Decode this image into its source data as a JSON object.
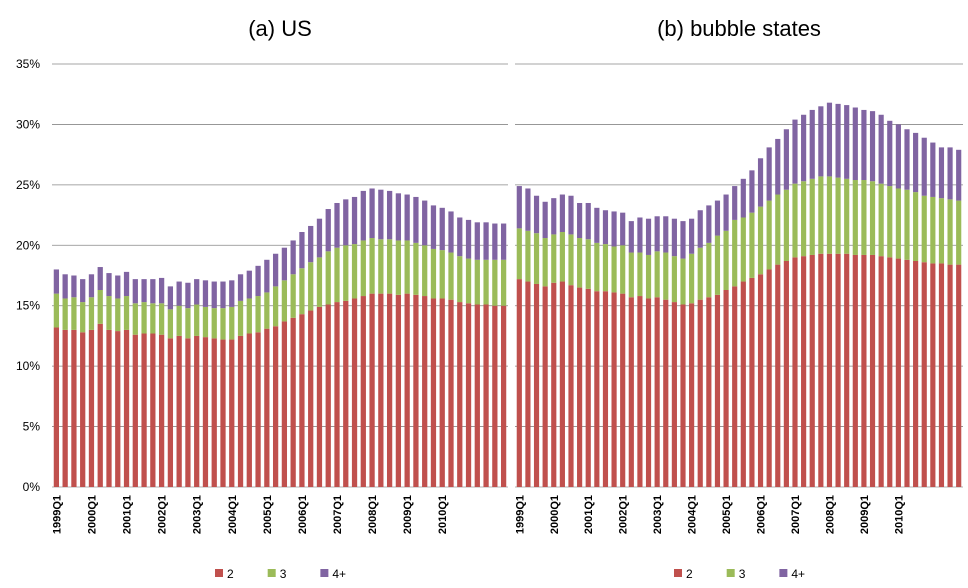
{
  "chart_data": [
    {
      "type": "stacked-bar",
      "title": "(a) US",
      "categories": [
        "1999Q1",
        null,
        null,
        null,
        "2000Q1",
        null,
        null,
        null,
        "2001Q1",
        null,
        null,
        null,
        "2002Q1",
        null,
        null,
        null,
        "2003Q1",
        null,
        null,
        null,
        "2004Q1",
        null,
        null,
        null,
        "2005Q1",
        null,
        null,
        null,
        "2006Q1",
        null,
        null,
        null,
        "2007Q1",
        null,
        null,
        null,
        "2008Q1",
        null,
        null,
        null,
        "2009Q1",
        null,
        null,
        null,
        "2010Q1",
        null,
        null,
        null,
        null,
        null,
        null,
        null
      ],
      "series": [
        {
          "name": "2",
          "color": "#c0504d",
          "values": [
            13.2,
            13.0,
            13.0,
            12.8,
            13.0,
            13.5,
            13.0,
            12.9,
            13.0,
            12.6,
            12.7,
            12.7,
            12.6,
            12.3,
            12.5,
            12.3,
            12.5,
            12.4,
            12.3,
            12.2,
            12.2,
            12.5,
            12.7,
            12.8,
            13.1,
            13.3,
            13.7,
            14.0,
            14.3,
            14.6,
            14.9,
            15.1,
            15.3,
            15.4,
            15.6,
            15.8,
            16.0,
            16.0,
            16.0,
            15.9,
            16.0,
            15.9,
            15.8,
            15.6,
            15.6,
            15.5,
            15.3,
            15.2,
            15.1,
            15.1,
            15.0,
            15.0
          ]
        },
        {
          "name": "3",
          "color": "#9bbb59",
          "values": [
            2.8,
            2.6,
            2.7,
            2.5,
            2.7,
            2.8,
            2.8,
            2.7,
            2.8,
            2.6,
            2.6,
            2.5,
            2.6,
            2.4,
            2.5,
            2.5,
            2.6,
            2.5,
            2.5,
            2.6,
            2.7,
            2.9,
            2.9,
            3.0,
            3.0,
            3.3,
            3.4,
            3.6,
            3.8,
            4.0,
            4.1,
            4.4,
            4.5,
            4.6,
            4.5,
            4.6,
            4.6,
            4.5,
            4.5,
            4.5,
            4.4,
            4.3,
            4.2,
            4.1,
            4.0,
            3.9,
            3.8,
            3.7,
            3.7,
            3.7,
            3.8,
            3.8
          ]
        },
        {
          "name": "4+",
          "color": "#8064a2",
          "values": [
            2.0,
            2.0,
            1.8,
            1.9,
            1.9,
            1.9,
            1.9,
            1.9,
            2.0,
            2.0,
            1.9,
            2.0,
            2.1,
            1.9,
            2.0,
            2.1,
            2.1,
            2.2,
            2.2,
            2.2,
            2.2,
            2.2,
            2.3,
            2.5,
            2.7,
            2.7,
            2.7,
            2.8,
            3.0,
            3.0,
            3.2,
            3.5,
            3.7,
            3.8,
            3.9,
            4.1,
            4.1,
            4.1,
            4.0,
            3.9,
            3.8,
            3.8,
            3.7,
            3.6,
            3.5,
            3.4,
            3.2,
            3.2,
            3.1,
            3.1,
            3.0,
            3.0
          ]
        }
      ],
      "ylim": [
        0,
        35
      ],
      "yticks": [
        {
          "value": 0,
          "label": "0%"
        },
        {
          "value": 5,
          "label": "5%"
        },
        {
          "value": 10,
          "label": "10%"
        },
        {
          "value": 15,
          "label": "15%"
        },
        {
          "value": 20,
          "label": "20%"
        },
        {
          "value": 25,
          "label": "25%"
        },
        {
          "value": 30,
          "label": "30%"
        },
        {
          "value": 35,
          "label": "35%"
        }
      ],
      "grid": true
    },
    {
      "type": "stacked-bar",
      "title": "(b) bubble states",
      "categories": [
        "1999Q1",
        null,
        null,
        null,
        "2000Q1",
        null,
        null,
        null,
        "2001Q1",
        null,
        null,
        null,
        "2002Q1",
        null,
        null,
        null,
        "2003Q1",
        null,
        null,
        null,
        "2004Q1",
        null,
        null,
        null,
        "2005Q1",
        null,
        null,
        null,
        "2006Q1",
        null,
        null,
        null,
        "2007Q1",
        null,
        null,
        null,
        "2008Q1",
        null,
        null,
        null,
        "2009Q1",
        null,
        null,
        null,
        "2010Q1",
        null,
        null,
        null,
        null,
        null,
        null,
        null
      ],
      "series": [
        {
          "name": "2",
          "color": "#c0504d",
          "values": [
            17.2,
            17.0,
            16.8,
            16.6,
            16.9,
            17.0,
            16.7,
            16.5,
            16.4,
            16.2,
            16.2,
            16.1,
            16.0,
            15.7,
            15.8,
            15.6,
            15.7,
            15.5,
            15.3,
            15.1,
            15.2,
            15.5,
            15.7,
            15.9,
            16.3,
            16.6,
            17.0,
            17.3,
            17.6,
            18.0,
            18.4,
            18.7,
            19.0,
            19.1,
            19.2,
            19.3,
            19.3,
            19.3,
            19.3,
            19.2,
            19.2,
            19.2,
            19.1,
            19.0,
            18.9,
            18.8,
            18.7,
            18.6,
            18.5,
            18.5,
            18.4,
            18.4
          ]
        },
        {
          "name": "3",
          "color": "#9bbb59",
          "values": [
            4.2,
            4.2,
            4.2,
            4.0,
            4.0,
            4.1,
            4.2,
            4.1,
            4.1,
            4.0,
            3.9,
            3.8,
            4.0,
            3.7,
            3.6,
            3.6,
            3.8,
            3.9,
            3.8,
            3.8,
            4.1,
            4.3,
            4.5,
            4.9,
            4.9,
            5.5,
            5.3,
            5.4,
            5.6,
            5.7,
            5.8,
            5.9,
            6.1,
            6.2,
            6.3,
            6.4,
            6.4,
            6.3,
            6.2,
            6.2,
            6.2,
            6.1,
            6.0,
            5.9,
            5.8,
            5.8,
            5.7,
            5.5,
            5.5,
            5.4,
            5.4,
            5.3
          ]
        },
        {
          "name": "4+",
          "color": "#8064a2",
          "values": [
            3.5,
            3.5,
            3.1,
            3.0,
            3.0,
            3.1,
            3.2,
            2.9,
            3.0,
            2.9,
            2.8,
            2.9,
            2.7,
            2.6,
            2.9,
            3.0,
            2.9,
            3.0,
            3.1,
            3.1,
            2.9,
            3.1,
            3.1,
            2.9,
            3.0,
            2.8,
            3.2,
            3.5,
            4.0,
            4.4,
            4.6,
            5.0,
            5.3,
            5.5,
            5.7,
            5.8,
            6.1,
            6.1,
            6.1,
            6.0,
            5.8,
            5.8,
            5.7,
            5.4,
            5.3,
            5.0,
            4.9,
            4.8,
            4.5,
            4.2,
            4.3,
            4.2
          ]
        }
      ],
      "ylim": [
        0,
        35
      ],
      "yticks": [
        0,
        5,
        10,
        15,
        20,
        25,
        30,
        35
      ],
      "grid": true
    }
  ]
}
